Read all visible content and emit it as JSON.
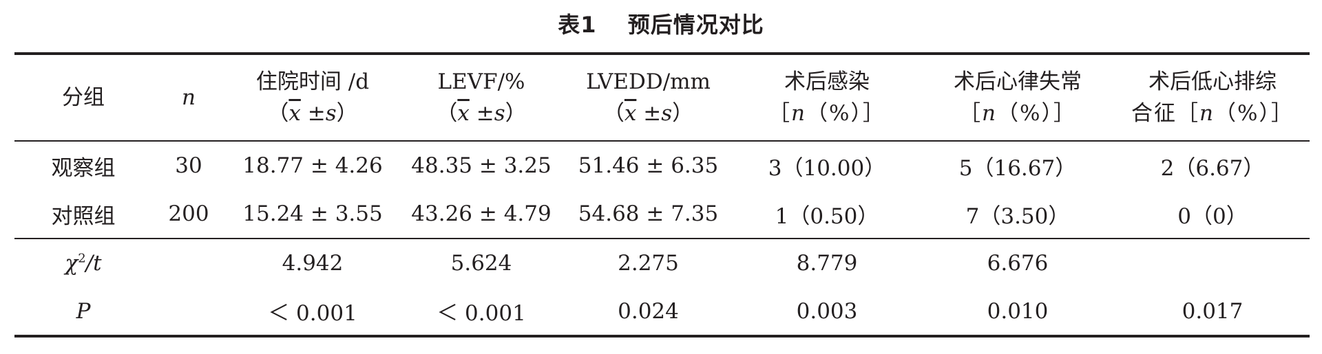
{
  "title": "表1　 预后情况对比",
  "columns": [
    {
      "lines": [
        "分组"
      ]
    },
    {
      "lines": [
        "n"
      ]
    },
    {
      "lines": [
        "住院时间 /d",
        "（x̄ ±s）"
      ]
    },
    {
      "lines": [
        "LEVF/%",
        "（x̄ ±s）"
      ]
    },
    {
      "lines": [
        "LVEDD/mm",
        "（x̄ ±s）"
      ]
    },
    {
      "lines": [
        "术后感染",
        "［n（%）］"
      ]
    },
    {
      "lines": [
        "术后心律失常",
        "［n（%）］"
      ]
    },
    {
      "lines": [
        "术后低心排综",
        "合征［n（%）］"
      ]
    }
  ],
  "header": {
    "group": "分组",
    "n": "n",
    "stay_line1": "住院时间 /d",
    "levf_line1": "LEVF/%",
    "lvedd_line1": "LVEDD/mm",
    "infection_line1": "术后感染",
    "arrhythmia_line1": "术后心律失常",
    "lowoutput_line1": "术后低心排综",
    "lowoutput_line2_prefix": "合征",
    "mean_open": "（",
    "xbar": "x",
    "pm": "±",
    "s": "s",
    "mean_close": "）",
    "bracket_open": "［",
    "bracket_n": "n",
    "pct": "（%）",
    "bracket_close": "］"
  },
  "rows": [
    {
      "group": "观察组",
      "n": "30",
      "stay": "18.77 ± 4.26",
      "levf": "48.35 ± 3.25",
      "lvedd": "51.46 ± 6.35",
      "infection": "3（10.00）",
      "arrhythmia": "5（16.67）",
      "low_output": "2（6.67）"
    },
    {
      "group": "对照组",
      "n": "200",
      "stay": "15.24 ± 3.55",
      "levf": "43.26 ± 4.79",
      "lvedd": "54.68 ± 7.35",
      "infection": "1（0.50）",
      "arrhythmia": "7（3.50）",
      "low_output": "0（0）"
    }
  ],
  "stats": [
    {
      "label_base": "χ",
      "label_sup": "2",
      "label_rest": "/t",
      "stay": "4.942",
      "levf": "5.624",
      "lvedd": "2.275",
      "infection": "8.779",
      "arrhythmia": "6.676",
      "low_output": ""
    },
    {
      "label_base": "P",
      "label_sup": "",
      "label_rest": "",
      "stay": "＜ 0.001",
      "levf": "＜ 0.001",
      "lvedd": "0.024",
      "infection": "0.003",
      "arrhythmia": "0.010",
      "low_output": "0.017"
    }
  ]
}
